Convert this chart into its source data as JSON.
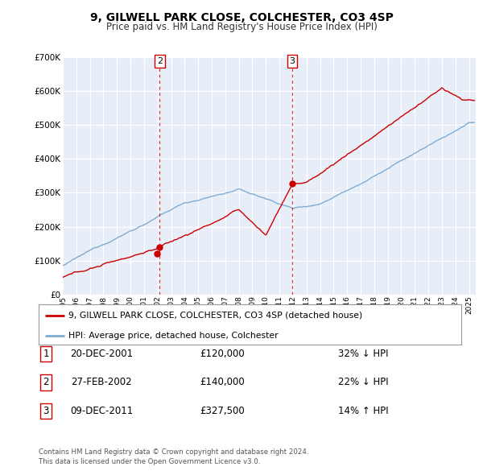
{
  "title1": "9, GILWELL PARK CLOSE, COLCHESTER, CO3 4SP",
  "title2": "Price paid vs. HM Land Registry's House Price Index (HPI)",
  "property_label": "9, GILWELL PARK CLOSE, COLCHESTER, CO3 4SP (detached house)",
  "hpi_label": "HPI: Average price, detached house, Colchester",
  "property_color": "#cc0000",
  "hpi_color": "#7eadd4",
  "plot_bg": "#e8eef8",
  "grid_color": "#ffffff",
  "fig_bg": "#ffffff",
  "ylim": [
    0,
    700000
  ],
  "yticks": [
    0,
    100000,
    200000,
    300000,
    400000,
    500000,
    600000,
    700000
  ],
  "ytick_labels": [
    "£0",
    "£100K",
    "£200K",
    "£300K",
    "£400K",
    "£500K",
    "£600K",
    "£700K"
  ],
  "xlim_start": 1995,
  "xlim_end": 2025.5,
  "transactions": [
    {
      "num": 1,
      "date": "20-DEC-2001",
      "price": "£120,000",
      "pct": "32% ↓ HPI",
      "year": 2001.97,
      "value": 120000
    },
    {
      "num": 2,
      "date": "27-FEB-2002",
      "price": "£140,000",
      "pct": "22% ↓ HPI",
      "year": 2002.16,
      "value": 140000
    },
    {
      "num": 3,
      "date": "09-DEC-2011",
      "price": "£327,500",
      "pct": "14% ↑ HPI",
      "year": 2011.94,
      "value": 327500
    }
  ],
  "vlines": [
    {
      "num": "2",
      "year": 2002.16
    },
    {
      "num": "3",
      "year": 2011.94
    }
  ],
  "footer1": "Contains HM Land Registry data © Crown copyright and database right 2024.",
  "footer2": "This data is licensed under the Open Government Licence v3.0."
}
